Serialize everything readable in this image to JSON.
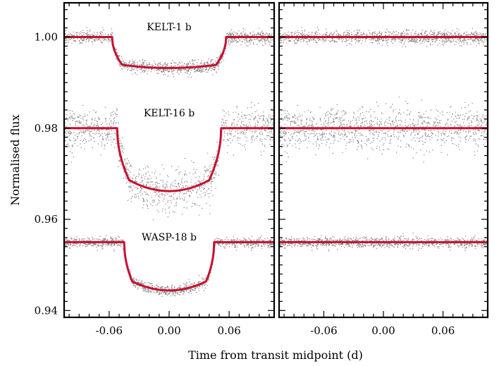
{
  "chart_data": {
    "type": "scatter",
    "xlabel": "Time from transit midpoint (d)",
    "ylabel": "Normalised flux",
    "xlim": [
      -0.105,
      0.105
    ],
    "ylim": [
      0.9385,
      1.0075
    ],
    "xticks": [
      -0.06,
      0.0,
      0.06
    ],
    "xtick_labels": [
      "-0.06",
      "0.00",
      "0.06"
    ],
    "yticks": [
      0.94,
      0.96,
      0.98,
      1.0
    ],
    "ytick_labels": [
      "0.94",
      "0.96",
      "0.98",
      "1.00"
    ],
    "panels": [
      "transit data with model",
      "residuals"
    ],
    "data_color": "#808080",
    "model_color": "#c8102e",
    "targets": [
      {
        "label": "KELT-1 b",
        "baseline": 1.0,
        "depth": 0.0068,
        "ingress_start": 0.057,
        "ingress_end": 0.047,
        "limb_curvature": 0.0007,
        "scatter": 0.0007,
        "model_width": 3
      },
      {
        "label": "KELT-16 b",
        "baseline": 0.98,
        "depth": 0.0138,
        "ingress_start": 0.052,
        "ingress_end": 0.04,
        "limb_curvature": 0.0024,
        "scatter": 0.0022,
        "model_width": 3
      },
      {
        "label": "WASP-18 b",
        "baseline": 0.955,
        "depth": 0.0106,
        "ingress_start": 0.045,
        "ingress_end": 0.037,
        "limb_curvature": 0.002,
        "scatter": 0.00055,
        "model_width": 3
      }
    ]
  }
}
